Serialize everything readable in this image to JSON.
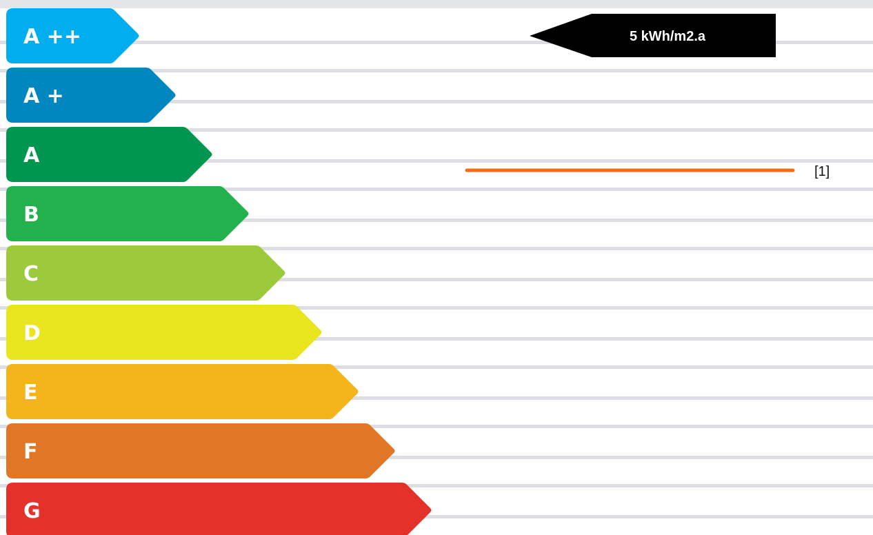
{
  "chart_data": {
    "type": "bar",
    "categories": [
      "A ++",
      "A +",
      "A",
      "B",
      "C",
      "D",
      "E",
      "F",
      "G"
    ],
    "colors": [
      "#00aeef",
      "#0087bf",
      "#009650",
      "#23b14d",
      "#9dca3c",
      "#e9e61f",
      "#f3b41c",
      "#e07626",
      "#e4312a"
    ],
    "indicator": {
      "category": "A ++",
      "label": "5 kWh/m2.a",
      "color": "#000000"
    },
    "legend": [
      {
        "label": "[1]",
        "color": "#f26d13"
      }
    ],
    "grid": true
  }
}
